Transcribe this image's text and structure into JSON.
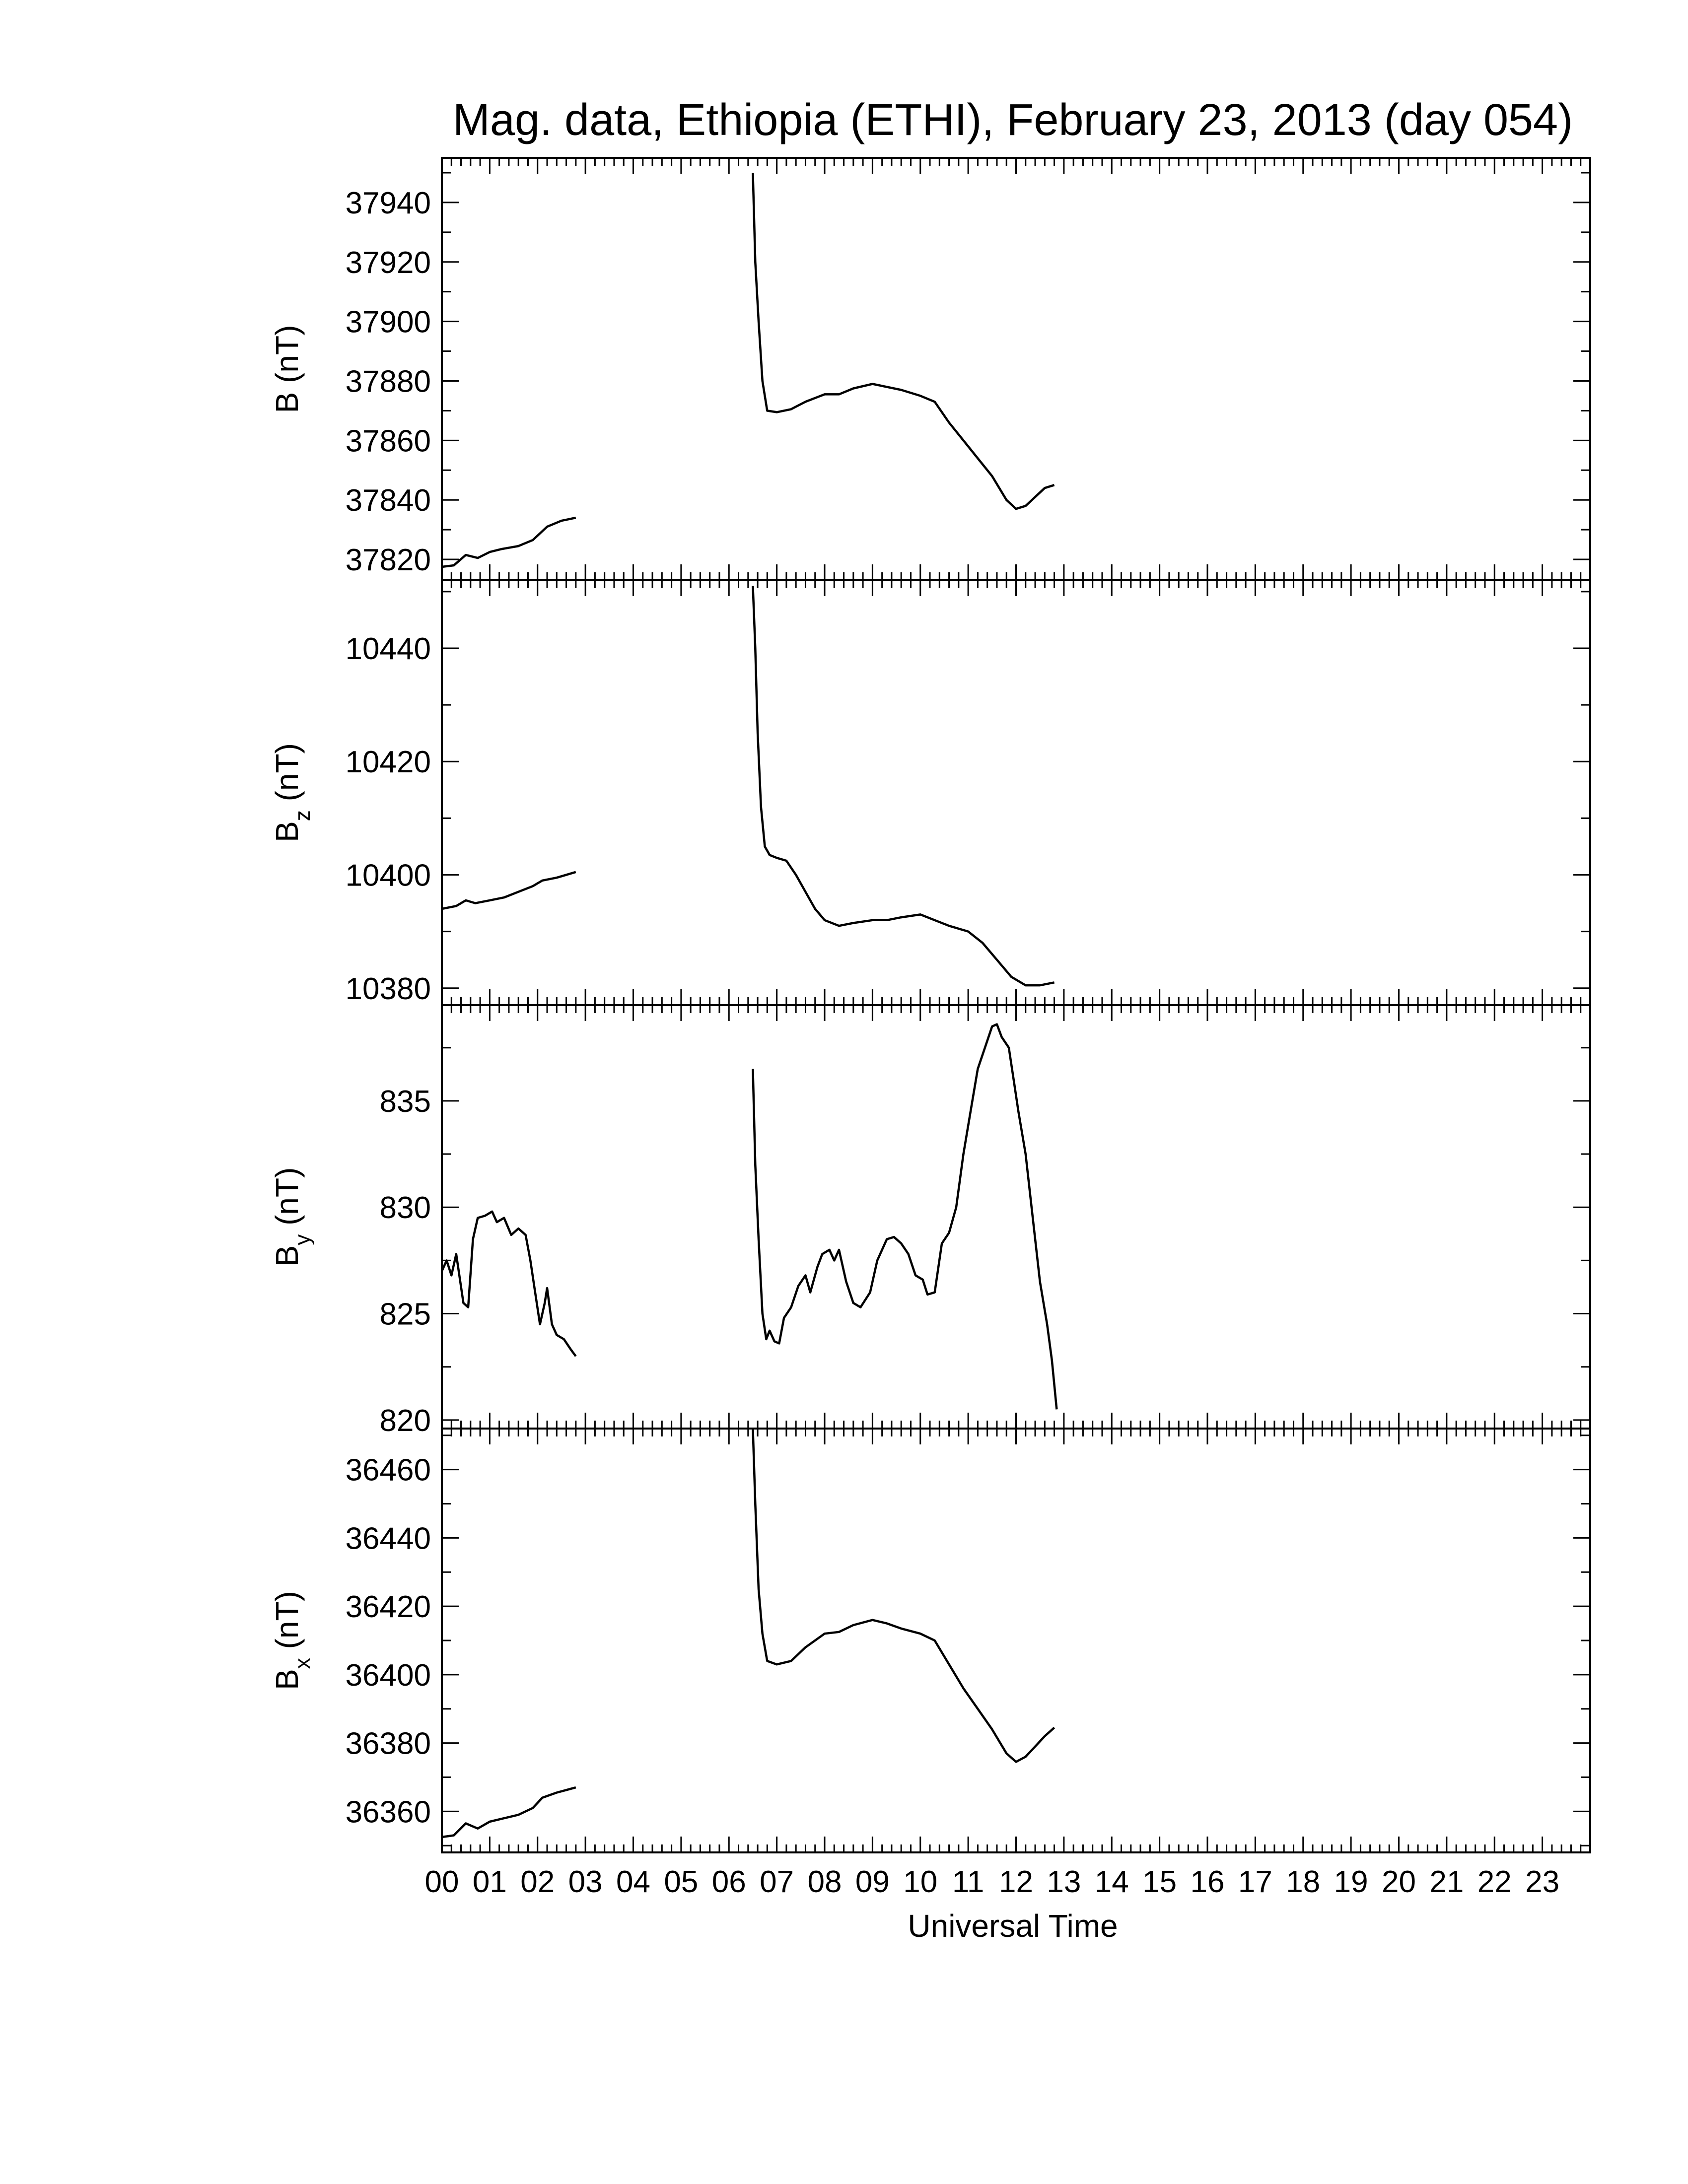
{
  "chart_data": {
    "type": "line",
    "title": "Mag. data, Ethiopia (ETHI), February 23, 2013 (day 054)",
    "xlabel": "Universal Time",
    "xlim": [
      0,
      24
    ],
    "x_tick_labels": [
      "00",
      "01",
      "02",
      "03",
      "04",
      "05",
      "06",
      "07",
      "08",
      "09",
      "10",
      "11",
      "12",
      "13",
      "14",
      "15",
      "16",
      "17",
      "18",
      "19",
      "20",
      "21",
      "22",
      "23"
    ],
    "line_color": "#000000",
    "panels": [
      {
        "id": "B",
        "ylabel_main": "B",
        "ylabel_sub": "",
        "ylabel_unit": "(nT)",
        "ylim": [
          37813,
          37955
        ],
        "yticks": [
          37820,
          37840,
          37860,
          37880,
          37900,
          37920,
          37940
        ],
        "segments": [
          [
            [
              0.0,
              37817.5
            ],
            [
              0.25,
              37818
            ],
            [
              0.5,
              37821.5
            ],
            [
              0.75,
              37820.5
            ],
            [
              1.0,
              37822.5
            ],
            [
              1.25,
              37823.5
            ],
            [
              1.6,
              37824.5
            ],
            [
              1.9,
              37826.5
            ],
            [
              2.2,
              37831
            ],
            [
              2.5,
              37833
            ],
            [
              2.8,
              37834
            ]
          ],
          [
            [
              6.5,
              37950
            ],
            [
              6.55,
              37920
            ],
            [
              6.62,
              37900
            ],
            [
              6.7,
              37880
            ],
            [
              6.8,
              37870
            ],
            [
              7.0,
              37869.5
            ],
            [
              7.3,
              37870.5
            ],
            [
              7.6,
              37873
            ],
            [
              8.0,
              37875.5
            ],
            [
              8.3,
              37875.5
            ],
            [
              8.6,
              37877.5
            ],
            [
              9.0,
              37879
            ],
            [
              9.3,
              37878
            ],
            [
              9.6,
              37877
            ],
            [
              10.0,
              37875
            ],
            [
              10.3,
              37873
            ],
            [
              10.6,
              37866
            ],
            [
              10.9,
              37860
            ],
            [
              11.2,
              37854
            ],
            [
              11.5,
              37848
            ],
            [
              11.8,
              37840
            ],
            [
              12.0,
              37837
            ],
            [
              12.2,
              37838
            ],
            [
              12.4,
              37841
            ],
            [
              12.6,
              37844
            ],
            [
              12.8,
              37845
            ]
          ]
        ]
      },
      {
        "id": "Bz",
        "ylabel_main": "B",
        "ylabel_sub": "z",
        "ylabel_unit": "(nT)",
        "ylim": [
          10377,
          10452
        ],
        "yticks": [
          10380,
          10400,
          10420,
          10440
        ],
        "segments": [
          [
            [
              0.0,
              10394
            ],
            [
              0.3,
              10394.5
            ],
            [
              0.5,
              10395.5
            ],
            [
              0.7,
              10395
            ],
            [
              1.0,
              10395.5
            ],
            [
              1.3,
              10396
            ],
            [
              1.6,
              10397
            ],
            [
              1.9,
              10398
            ],
            [
              2.1,
              10399
            ],
            [
              2.4,
              10399.5
            ],
            [
              2.8,
              10400.5
            ]
          ],
          [
            [
              6.5,
              10451
            ],
            [
              6.55,
              10440
            ],
            [
              6.6,
              10425
            ],
            [
              6.67,
              10412
            ],
            [
              6.75,
              10405
            ],
            [
              6.85,
              10403.5
            ],
            [
              7.0,
              10403
            ],
            [
              7.2,
              10402.5
            ],
            [
              7.4,
              10400
            ],
            [
              7.6,
              10397
            ],
            [
              7.8,
              10394
            ],
            [
              8.0,
              10392
            ],
            [
              8.3,
              10391
            ],
            [
              8.6,
              10391.5
            ],
            [
              9.0,
              10392
            ],
            [
              9.3,
              10392
            ],
            [
              9.6,
              10392.5
            ],
            [
              10.0,
              10393
            ],
            [
              10.3,
              10392
            ],
            [
              10.6,
              10391
            ],
            [
              11.0,
              10390
            ],
            [
              11.3,
              10388
            ],
            [
              11.6,
              10385
            ],
            [
              11.9,
              10382
            ],
            [
              12.2,
              10380.5
            ],
            [
              12.5,
              10380.5
            ],
            [
              12.8,
              10381
            ]
          ]
        ]
      },
      {
        "id": "By",
        "ylabel_main": "B",
        "ylabel_sub": "y",
        "ylabel_unit": "(nT)",
        "ylim": [
          819.6,
          839.5
        ],
        "yticks": [
          820,
          825,
          830,
          835
        ],
        "segments": [
          [
            [
              0.0,
              827
            ],
            [
              0.1,
              827.5
            ],
            [
              0.2,
              826.8
            ],
            [
              0.3,
              827.8
            ],
            [
              0.45,
              825.5
            ],
            [
              0.55,
              825.3
            ],
            [
              0.65,
              828.5
            ],
            [
              0.75,
              829.5
            ],
            [
              0.9,
              829.6
            ],
            [
              1.05,
              829.8
            ],
            [
              1.15,
              829.3
            ],
            [
              1.3,
              829.5
            ],
            [
              1.45,
              828.7
            ],
            [
              1.6,
              829
            ],
            [
              1.75,
              828.7
            ],
            [
              1.85,
              827.5
            ],
            [
              1.95,
              826
            ],
            [
              2.05,
              824.5
            ],
            [
              2.15,
              825.5
            ],
            [
              2.2,
              826.2
            ],
            [
              2.3,
              824.5
            ],
            [
              2.4,
              824
            ],
            [
              2.55,
              823.8
            ],
            [
              2.7,
              823.3
            ],
            [
              2.8,
              823
            ]
          ],
          [
            [
              6.5,
              836.5
            ],
            [
              6.55,
              832
            ],
            [
              6.62,
              828.5
            ],
            [
              6.7,
              825
            ],
            [
              6.78,
              823.8
            ],
            [
              6.85,
              824.2
            ],
            [
              6.95,
              823.7
            ],
            [
              7.05,
              823.6
            ],
            [
              7.15,
              824.8
            ],
            [
              7.3,
              825.3
            ],
            [
              7.45,
              826.3
            ],
            [
              7.6,
              826.8
            ],
            [
              7.7,
              826
            ],
            [
              7.85,
              827.2
            ],
            [
              7.95,
              827.8
            ],
            [
              8.1,
              828
            ],
            [
              8.2,
              827.5
            ],
            [
              8.3,
              828
            ],
            [
              8.45,
              826.5
            ],
            [
              8.6,
              825.5
            ],
            [
              8.75,
              825.3
            ],
            [
              8.95,
              826
            ],
            [
              9.1,
              827.5
            ],
            [
              9.3,
              828.5
            ],
            [
              9.45,
              828.6
            ],
            [
              9.6,
              828.3
            ],
            [
              9.75,
              827.8
            ],
            [
              9.9,
              826.8
            ],
            [
              10.05,
              826.6
            ],
            [
              10.15,
              825.9
            ],
            [
              10.3,
              826
            ],
            [
              10.45,
              828.3
            ],
            [
              10.6,
              828.8
            ],
            [
              10.75,
              830
            ],
            [
              10.9,
              832.5
            ],
            [
              11.05,
              834.5
            ],
            [
              11.2,
              836.5
            ],
            [
              11.35,
              837.5
            ],
            [
              11.5,
              838.5
            ],
            [
              11.6,
              838.6
            ],
            [
              11.7,
              838
            ],
            [
              11.85,
              837.5
            ],
            [
              11.95,
              836
            ],
            [
              12.05,
              834.5
            ],
            [
              12.2,
              832.5
            ],
            [
              12.35,
              829.5
            ],
            [
              12.5,
              826.5
            ],
            [
              12.65,
              824.5
            ],
            [
              12.75,
              822.8
            ],
            [
              12.85,
              820.5
            ]
          ]
        ]
      },
      {
        "id": "Bx",
        "ylabel_main": "B",
        "ylabel_sub": "x",
        "ylabel_unit": "(nT)",
        "ylim": [
          36348,
          36472
        ],
        "yticks": [
          36360,
          36380,
          36400,
          36420,
          36440,
          36460
        ],
        "segments": [
          [
            [
              0.0,
              36352.5
            ],
            [
              0.25,
              36353
            ],
            [
              0.5,
              36356.5
            ],
            [
              0.75,
              36355
            ],
            [
              1.0,
              36357
            ],
            [
              1.3,
              36358
            ],
            [
              1.6,
              36359
            ],
            [
              1.9,
              36361
            ],
            [
              2.1,
              36364
            ],
            [
              2.4,
              36365.5
            ],
            [
              2.8,
              36367
            ]
          ],
          [
            [
              6.5,
              36472
            ],
            [
              6.55,
              36450
            ],
            [
              6.62,
              36425
            ],
            [
              6.7,
              36412
            ],
            [
              6.8,
              36404
            ],
            [
              7.0,
              36403
            ],
            [
              7.3,
              36404
            ],
            [
              7.6,
              36408
            ],
            [
              8.0,
              36412
            ],
            [
              8.3,
              36412.5
            ],
            [
              8.6,
              36414.5
            ],
            [
              9.0,
              36416
            ],
            [
              9.3,
              36415
            ],
            [
              9.6,
              36413.5
            ],
            [
              10.0,
              36412
            ],
            [
              10.3,
              36410
            ],
            [
              10.6,
              36403
            ],
            [
              10.9,
              36396
            ],
            [
              11.2,
              36390
            ],
            [
              11.5,
              36384
            ],
            [
              11.8,
              36377
            ],
            [
              12.0,
              36374.5
            ],
            [
              12.2,
              36376
            ],
            [
              12.4,
              36379
            ],
            [
              12.6,
              36382
            ],
            [
              12.8,
              36384.5
            ]
          ]
        ]
      }
    ]
  }
}
